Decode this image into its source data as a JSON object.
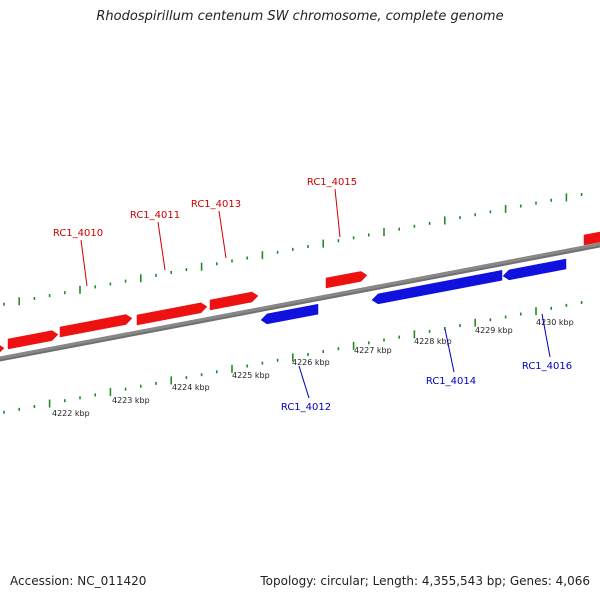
{
  "title": "Rhodospirillum centenum SW chromosome, complete genome",
  "footer": {
    "accession": "Accession: NC_011420",
    "summary": "Topology: circular; Length: 4,355,543 bp; Genes: 4,066"
  },
  "colors": {
    "forward": "#ee1111",
    "reverse": "#1111dd",
    "forward_label": "#cc0000",
    "reverse_label": "#0000bb",
    "backbone": "#888888",
    "ticks": "#228b22"
  },
  "tick_labels": [
    "4222 kbp",
    "4223 kbp",
    "4224 kbp",
    "4225 kbp",
    "4226 kbp",
    "4227 kbp",
    "4228 kbp",
    "4229 kbp",
    "4230 kbp"
  ],
  "gene_labels": {
    "forward": [
      "RC1_4010",
      "RC1_4011",
      "RC1_4013",
      "RC1_4015"
    ],
    "reverse": [
      "RC1_4012",
      "RC1_4014",
      "RC1_4016"
    ]
  }
}
